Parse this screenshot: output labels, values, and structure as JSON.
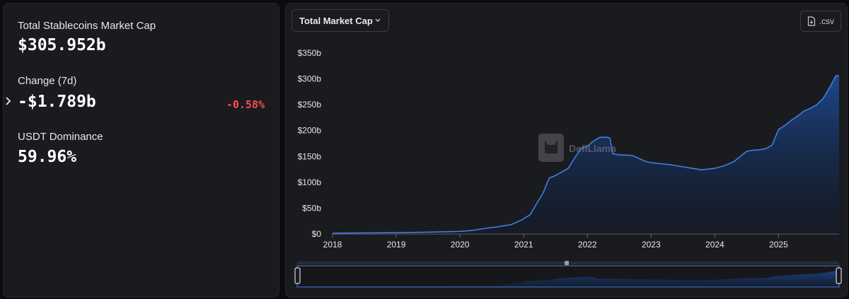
{
  "stats": {
    "total_label": "Total Stablecoins Market Cap",
    "total_value": "$305.952b",
    "change_label": "Change (7d)",
    "change_value": "-$1.789b",
    "change_pct": "-0.58%",
    "dominance_label": "USDT Dominance",
    "dominance_value": "59.96%"
  },
  "toolbar": {
    "dropdown_label": "Total Market Cap",
    "csv_label": ".csv"
  },
  "watermark": {
    "text": "DefiLlama"
  },
  "colors": {
    "line": "#3f7fe0",
    "fill_top": "#1e4a93",
    "negative": "#ff4d4d"
  },
  "chart_data": {
    "type": "area",
    "title": "",
    "xlabel": "",
    "ylabel": "",
    "x_ticks": [
      "2018",
      "2019",
      "2020",
      "2021",
      "2022",
      "2023",
      "2024",
      "2025"
    ],
    "y_ticks": [
      "$0",
      "$50b",
      "$100b",
      "$150b",
      "$200b",
      "$250b",
      "$300b",
      "$350b"
    ],
    "ylim": [
      0,
      350
    ],
    "xlim": [
      2018.0,
      2025.95
    ],
    "grid": false,
    "series": [
      {
        "name": "",
        "x": [
          2018.0,
          2018.5,
          2019.0,
          2019.5,
          2020.0,
          2020.2,
          2020.4,
          2020.6,
          2020.8,
          2020.95,
          2021.1,
          2021.2,
          2021.3,
          2021.4,
          2021.5,
          2021.6,
          2021.7,
          2021.8,
          2021.9,
          2022.0,
          2022.1,
          2022.2,
          2022.3,
          2022.35,
          2022.4,
          2022.5,
          2022.7,
          2022.9,
          2023.0,
          2023.3,
          2023.6,
          2023.8,
          2024.0,
          2024.15,
          2024.3,
          2024.5,
          2024.6,
          2024.7,
          2024.8,
          2024.9,
          2025.0,
          2025.1,
          2025.2,
          2025.3,
          2025.4,
          2025.5,
          2025.6,
          2025.7,
          2025.8,
          2025.9,
          2025.95
        ],
        "values": [
          1.5,
          2,
          2.5,
          3.5,
          5,
          7,
          11,
          14,
          18,
          26,
          37,
          58,
          78,
          108,
          113,
          120,
          127,
          147,
          165,
          170,
          180,
          187,
          187,
          186,
          155,
          153,
          152,
          141,
          138,
          134,
          128,
          124,
          127,
          132,
          140,
          160,
          162,
          163,
          165,
          172,
          202,
          210,
          220,
          228,
          238,
          243,
          250,
          262,
          283,
          306,
          306
        ]
      }
    ]
  }
}
